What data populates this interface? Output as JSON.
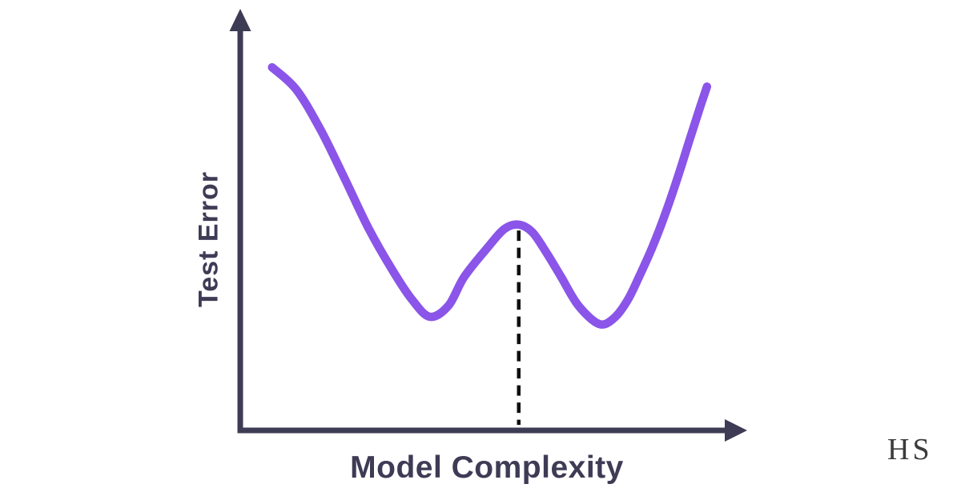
{
  "watermark": {
    "text": "HS"
  },
  "chart_data": {
    "type": "line",
    "title": "",
    "xlabel": "Model Complexity",
    "ylabel": "Test Error",
    "x_axis": {
      "label": "Model Complexity",
      "ticks": [],
      "arrow": true,
      "range_relative": [
        0,
        100
      ]
    },
    "y_axis": {
      "label": "Test Error",
      "ticks": [],
      "arrow": true,
      "range_relative": [
        0,
        100
      ]
    },
    "grid": false,
    "legend": false,
    "series": [
      {
        "name": "test-error-curve",
        "color": "#8A55E8",
        "stroke_width": 10.5,
        "points": [
          {
            "x": 6.3,
            "y": 86.3
          },
          {
            "x": 11.1,
            "y": 81.0
          },
          {
            "x": 15.9,
            "y": 71.5
          },
          {
            "x": 20.6,
            "y": 60.1
          },
          {
            "x": 25.4,
            "y": 48.1
          },
          {
            "x": 30.2,
            "y": 38.0
          },
          {
            "x": 34.1,
            "y": 31.0
          },
          {
            "x": 37.6,
            "y": 27.0
          },
          {
            "x": 41.3,
            "y": 29.7
          },
          {
            "x": 44.4,
            "y": 36.5
          },
          {
            "x": 49.2,
            "y": 43.7
          },
          {
            "x": 52.4,
            "y": 47.9
          },
          {
            "x": 55.2,
            "y": 48.9
          },
          {
            "x": 57.9,
            "y": 47.1
          },
          {
            "x": 60.6,
            "y": 42.4
          },
          {
            "x": 63.5,
            "y": 36.7
          },
          {
            "x": 67.0,
            "y": 29.7
          },
          {
            "x": 71.1,
            "y": 25.3
          },
          {
            "x": 74.0,
            "y": 26.6
          },
          {
            "x": 76.7,
            "y": 30.8
          },
          {
            "x": 79.2,
            "y": 36.9
          },
          {
            "x": 81.6,
            "y": 43.3
          },
          {
            "x": 84.1,
            "y": 51.0
          },
          {
            "x": 86.7,
            "y": 60.1
          },
          {
            "x": 89.2,
            "y": 69.6
          },
          {
            "x": 91.3,
            "y": 77.4
          },
          {
            "x": 92.5,
            "y": 81.7
          }
        ]
      }
    ],
    "annotations": [
      {
        "type": "vertical-dashed-line",
        "x": 55.2,
        "y_from": 47.5,
        "y_to": 1.3,
        "color": "#0e0e0e",
        "dash": "13 8.5",
        "stroke_width": 4.5
      }
    ],
    "style": {
      "axis_color": "#3E3B55",
      "label_color": "#3E3B55",
      "curve_color": "#8A55E8",
      "background": "#FFFFFF"
    }
  }
}
